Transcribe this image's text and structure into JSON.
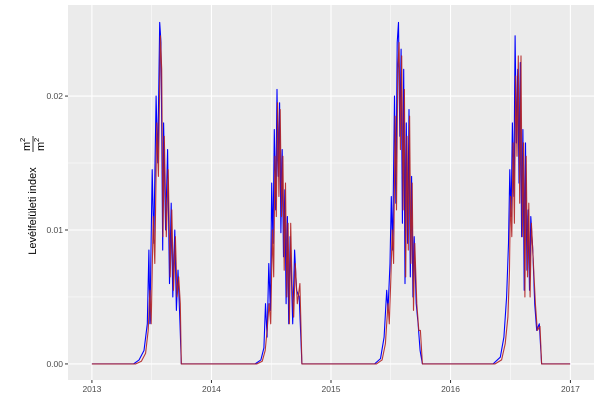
{
  "chart_data": {
    "type": "line",
    "title": "",
    "xlabel": "",
    "ylabel": "Levélfelületi index",
    "ylabel_unit_num": "m",
    "ylabel_unit_den": "m",
    "ylabel_unit_exp": "2",
    "x_ticks": [
      "2013",
      "2014",
      "2015",
      "2016",
      "2017"
    ],
    "y_ticks": [
      "0.00",
      "0.01",
      "0.02"
    ],
    "y_tick_values": [
      0,
      0.01,
      0.02
    ],
    "ylim": [
      -0.0012,
      0.0268
    ],
    "xlim": [
      "2012-10-20",
      "2017-03-14"
    ],
    "grid": true,
    "legend": "none",
    "background": "#EBEBEB",
    "series": [
      {
        "color": "#0000FF",
        "points": [
          [
            "2013-01-01",
            0
          ],
          [
            "2013-05-08",
            0
          ],
          [
            "2013-05-25",
            0.0003
          ],
          [
            "2013-06-09",
            0.001
          ],
          [
            "2013-06-19",
            0.003
          ],
          [
            "2013-06-24",
            0.0085
          ],
          [
            "2013-06-27",
            0.003
          ],
          [
            "2013-07-04",
            0.0145
          ],
          [
            "2013-07-09",
            0.009
          ],
          [
            "2013-07-16",
            0.02
          ],
          [
            "2013-07-21",
            0.015
          ],
          [
            "2013-07-27",
            0.0255
          ],
          [
            "2013-07-31",
            0.024
          ],
          [
            "2013-08-05",
            0.0085
          ],
          [
            "2013-08-08",
            0.018
          ],
          [
            "2013-08-14",
            0.01
          ],
          [
            "2013-08-20",
            0.016
          ],
          [
            "2013-08-26",
            0.006
          ],
          [
            "2013-08-31",
            0.012
          ],
          [
            "2013-09-05",
            0.005
          ],
          [
            "2013-09-11",
            0.01
          ],
          [
            "2013-09-16",
            0.004
          ],
          [
            "2013-09-21",
            0.007
          ],
          [
            "2013-09-27",
            0.003
          ],
          [
            "2013-10-01",
            0
          ],
          [
            "2014-05-14",
            0
          ],
          [
            "2014-06-01",
            0.0003
          ],
          [
            "2014-06-10",
            0.0012
          ],
          [
            "2014-06-15",
            0.0045
          ],
          [
            "2014-06-20",
            0.002
          ],
          [
            "2014-06-25",
            0.0075
          ],
          [
            "2014-06-30",
            0.004
          ],
          [
            "2014-07-04",
            0.0135
          ],
          [
            "2014-07-08",
            0.009
          ],
          [
            "2014-07-12",
            0.0175
          ],
          [
            "2014-07-16",
            0.0115
          ],
          [
            "2014-07-20",
            0.0205
          ],
          [
            "2014-07-24",
            0.014
          ],
          [
            "2014-07-28",
            0.0195
          ],
          [
            "2014-08-01",
            0.0098
          ],
          [
            "2014-08-05",
            0.016
          ],
          [
            "2014-08-09",
            0.008
          ],
          [
            "2014-08-13",
            0.013
          ],
          [
            "2014-08-17",
            0.0045
          ],
          [
            "2014-08-21",
            0.011
          ],
          [
            "2014-08-25",
            0.003
          ],
          [
            "2014-08-29",
            0.0095
          ],
          [
            "2014-09-02",
            0.0065
          ],
          [
            "2014-09-06",
            0.003
          ],
          [
            "2014-09-12",
            0.0085
          ],
          [
            "2014-09-18",
            0.0055
          ],
          [
            "2014-09-26",
            0.005
          ],
          [
            "2014-10-04",
            0
          ],
          [
            "2015-05-14",
            0
          ],
          [
            "2015-06-01",
            0.0004
          ],
          [
            "2015-06-12",
            0.002
          ],
          [
            "2015-06-20",
            0.0055
          ],
          [
            "2015-06-24",
            0.004
          ],
          [
            "2015-06-30",
            0.0075
          ],
          [
            "2015-07-04",
            0.0125
          ],
          [
            "2015-07-08",
            0.0085
          ],
          [
            "2015-07-14",
            0.02
          ],
          [
            "2015-07-18",
            0.012
          ],
          [
            "2015-07-22",
            0.024
          ],
          [
            "2015-07-26",
            0.0255
          ],
          [
            "2015-07-30",
            0.017
          ],
          [
            "2015-08-03",
            0.0235
          ],
          [
            "2015-08-07",
            0.0105
          ],
          [
            "2015-08-11",
            0.022
          ],
          [
            "2015-08-15",
            0.006
          ],
          [
            "2015-08-19",
            0.018
          ],
          [
            "2015-08-23",
            0.009
          ],
          [
            "2015-08-27",
            0.019
          ],
          [
            "2015-08-31",
            0.0065
          ],
          [
            "2015-09-04",
            0.014
          ],
          [
            "2015-09-08",
            0.005
          ],
          [
            "2015-09-12",
            0.0095
          ],
          [
            "2015-09-18",
            0.0045
          ],
          [
            "2015-09-24",
            0.003
          ],
          [
            "2015-09-30",
            0.001
          ],
          [
            "2015-10-07",
            0
          ],
          [
            "2016-05-10",
            0
          ],
          [
            "2016-06-01",
            0.0005
          ],
          [
            "2016-06-12",
            0.002
          ],
          [
            "2016-06-20",
            0.005
          ],
          [
            "2016-06-26",
            0.009
          ],
          [
            "2016-06-30",
            0.0145
          ],
          [
            "2016-07-04",
            0.011
          ],
          [
            "2016-07-08",
            0.018
          ],
          [
            "2016-07-12",
            0.0125
          ],
          [
            "2016-07-16",
            0.0245
          ],
          [
            "2016-07-20",
            0.0165
          ],
          [
            "2016-07-24",
            0.022
          ],
          [
            "2016-07-28",
            0.0135
          ],
          [
            "2016-08-01",
            0.0225
          ],
          [
            "2016-08-05",
            0.0095
          ],
          [
            "2016-08-09",
            0.0175
          ],
          [
            "2016-08-13",
            0.0055
          ],
          [
            "2016-08-17",
            0.0165
          ],
          [
            "2016-08-21",
            0.007
          ],
          [
            "2016-08-25",
            0.0115
          ],
          [
            "2016-08-29",
            0.0055
          ],
          [
            "2016-09-02",
            0.011
          ],
          [
            "2016-09-08",
            0.0085
          ],
          [
            "2016-09-14",
            0.0045
          ],
          [
            "2016-09-20",
            0.0025
          ],
          [
            "2016-09-28",
            0.003
          ],
          [
            "2016-10-05",
            0
          ],
          [
            "2016-12-31",
            0
          ]
        ]
      },
      {
        "color": "#B22222",
        "points": [
          [
            "2013-01-01",
            0
          ],
          [
            "2013-05-15",
            0
          ],
          [
            "2013-06-01",
            0.0002
          ],
          [
            "2013-06-14",
            0.0008
          ],
          [
            "2013-06-22",
            0.0025
          ],
          [
            "2013-06-27",
            0.0055
          ],
          [
            "2013-07-01",
            0.003
          ],
          [
            "2013-07-07",
            0.011
          ],
          [
            "2013-07-12",
            0.0075
          ],
          [
            "2013-07-18",
            0.018
          ],
          [
            "2013-07-23",
            0.014
          ],
          [
            "2013-07-29",
            0.0245
          ],
          [
            "2013-08-02",
            0.022
          ],
          [
            "2013-08-06",
            0.0095
          ],
          [
            "2013-08-10",
            0.017
          ],
          [
            "2013-08-16",
            0.0095
          ],
          [
            "2013-08-22",
            0.0145
          ],
          [
            "2013-08-28",
            0.0065
          ],
          [
            "2013-09-02",
            0.0115
          ],
          [
            "2013-09-07",
            0.0055
          ],
          [
            "2013-09-13",
            0.0095
          ],
          [
            "2013-09-18",
            0.005
          ],
          [
            "2013-09-23",
            0.0065
          ],
          [
            "2013-09-28",
            0.0045
          ],
          [
            "2013-10-01",
            0
          ],
          [
            "2014-05-20",
            0
          ],
          [
            "2014-06-05",
            0.0002
          ],
          [
            "2014-06-14",
            0.001
          ],
          [
            "2014-06-20",
            0.0025
          ],
          [
            "2014-06-26",
            0.0045
          ],
          [
            "2014-07-01",
            0.003
          ],
          [
            "2014-07-06",
            0.01
          ],
          [
            "2014-07-10",
            0.0065
          ],
          [
            "2014-07-14",
            0.0155
          ],
          [
            "2014-07-18",
            0.011
          ],
          [
            "2014-07-22",
            0.0195
          ],
          [
            "2014-07-26",
            0.0125
          ],
          [
            "2014-07-30",
            0.019
          ],
          [
            "2014-08-03",
            0.011
          ],
          [
            "2014-08-07",
            0.0155
          ],
          [
            "2014-08-11",
            0.007
          ],
          [
            "2014-08-15",
            0.0135
          ],
          [
            "2014-08-19",
            0.005
          ],
          [
            "2014-08-23",
            0.0105
          ],
          [
            "2014-08-27",
            0.003
          ],
          [
            "2014-08-31",
            0.0105
          ],
          [
            "2014-09-04",
            0.006
          ],
          [
            "2014-09-09",
            0.0035
          ],
          [
            "2014-09-14",
            0.0075
          ],
          [
            "2014-09-20",
            0.0045
          ],
          [
            "2014-09-28",
            0.006
          ],
          [
            "2014-10-04",
            0
          ],
          [
            "2015-05-20",
            0
          ],
          [
            "2015-06-06",
            0.0003
          ],
          [
            "2015-06-16",
            0.0015
          ],
          [
            "2015-06-24",
            0.0045
          ],
          [
            "2015-06-28",
            0.003
          ],
          [
            "2015-07-03",
            0.0065
          ],
          [
            "2015-07-07",
            0.01
          ],
          [
            "2015-07-11",
            0.0075
          ],
          [
            "2015-07-16",
            0.0185
          ],
          [
            "2015-07-20",
            0.0115
          ],
          [
            "2015-07-24",
            0.022
          ],
          [
            "2015-07-28",
            0.024
          ],
          [
            "2015-08-01",
            0.016
          ],
          [
            "2015-08-05",
            0.023
          ],
          [
            "2015-08-09",
            0.0115
          ],
          [
            "2015-08-13",
            0.0205
          ],
          [
            "2015-08-17",
            0.0065
          ],
          [
            "2015-08-21",
            0.017
          ],
          [
            "2015-08-25",
            0.0085
          ],
          [
            "2015-08-29",
            0.0185
          ],
          [
            "2015-09-02",
            0.0075
          ],
          [
            "2015-09-06",
            0.0135
          ],
          [
            "2015-09-10",
            0.004
          ],
          [
            "2015-09-14",
            0.009
          ],
          [
            "2015-09-20",
            0.0045
          ],
          [
            "2015-09-26",
            0.0025
          ],
          [
            "2015-10-01",
            0.0025
          ],
          [
            "2015-10-07",
            0
          ],
          [
            "2016-05-16",
            0
          ],
          [
            "2016-06-05",
            0.0003
          ],
          [
            "2016-06-16",
            0.0015
          ],
          [
            "2016-06-24",
            0.0035
          ],
          [
            "2016-06-29",
            0.007
          ],
          [
            "2016-07-02",
            0.0125
          ],
          [
            "2016-07-06",
            0.0095
          ],
          [
            "2016-07-10",
            0.0165
          ],
          [
            "2016-07-14",
            0.0105
          ],
          [
            "2016-07-18",
            0.0215
          ],
          [
            "2016-07-22",
            0.0155
          ],
          [
            "2016-07-26",
            0.023
          ],
          [
            "2016-07-30",
            0.012
          ],
          [
            "2016-08-03",
            0.023
          ],
          [
            "2016-08-07",
            0.0095
          ],
          [
            "2016-08-11",
            0.0165
          ],
          [
            "2016-08-15",
            0.005
          ],
          [
            "2016-08-19",
            0.0155
          ],
          [
            "2016-08-23",
            0.0065
          ],
          [
            "2016-08-27",
            0.012
          ],
          [
            "2016-08-31",
            0.005
          ],
          [
            "2016-09-04",
            0.0105
          ],
          [
            "2016-09-10",
            0.0075
          ],
          [
            "2016-09-16",
            0.0045
          ],
          [
            "2016-09-22",
            0.0025
          ],
          [
            "2016-09-30",
            0.0028
          ],
          [
            "2016-10-05",
            0
          ],
          [
            "2016-12-31",
            0
          ]
        ]
      }
    ]
  }
}
